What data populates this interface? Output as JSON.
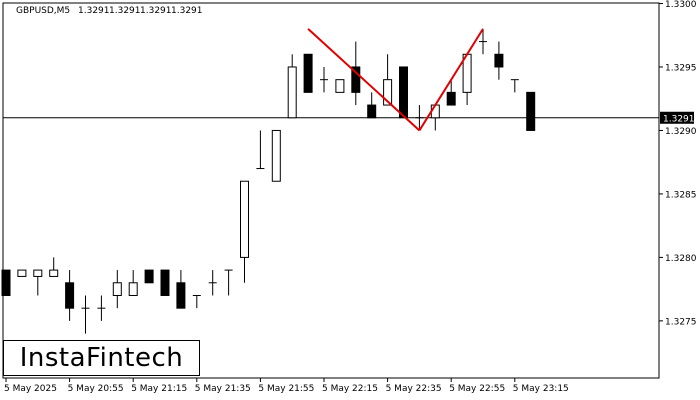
{
  "header": {
    "symbol": "GBPUSD,M5",
    "ohlc": [
      "1.3291",
      "1.3291",
      "1.3291",
      "1.3291"
    ]
  },
  "logo": {
    "text": "InstaFintech"
  },
  "chart_data": {
    "type": "candlestick",
    "symbol": "GBPUSD",
    "timeframe": "M5",
    "ylim": [
      1.32705,
      1.33
    ],
    "y_ticks": [
      "1.3275",
      "1.3280",
      "1.3285",
      "1.3290",
      "1.3295",
      "1.3300"
    ],
    "x_tick_labels": [
      "5 May 2025",
      "5 May 20:55",
      "5 May 21:15",
      "5 May 21:35",
      "5 May 21:55",
      "5 May 22:15",
      "5 May 22:35",
      "5 May 22:55",
      "5 May 23:15"
    ],
    "current_price": 1.3291,
    "current_price_label": "1.3291",
    "candles": [
      {
        "o": 1.3279,
        "h": 1.3279,
        "l": 1.3277,
        "c": 1.3277
      },
      {
        "o": 1.32785,
        "h": 1.3279,
        "l": 1.32785,
        "c": 1.3279
      },
      {
        "o": 1.32785,
        "h": 1.3279,
        "l": 1.3277,
        "c": 1.3279
      },
      {
        "o": 1.32785,
        "h": 1.328,
        "l": 1.32785,
        "c": 1.3279
      },
      {
        "o": 1.3278,
        "h": 1.3279,
        "l": 1.3275,
        "c": 1.3276
      },
      {
        "o": 1.3276,
        "h": 1.3277,
        "l": 1.3274,
        "c": 1.3276
      },
      {
        "o": 1.3276,
        "h": 1.3277,
        "l": 1.3275,
        "c": 1.3276
      },
      {
        "o": 1.3277,
        "h": 1.3279,
        "l": 1.3276,
        "c": 1.3278
      },
      {
        "o": 1.3277,
        "h": 1.3279,
        "l": 1.3277,
        "c": 1.3278
      },
      {
        "o": 1.3279,
        "h": 1.3279,
        "l": 1.3278,
        "c": 1.3278
      },
      {
        "o": 1.3279,
        "h": 1.3279,
        "l": 1.3277,
        "c": 1.3277
      },
      {
        "o": 1.3278,
        "h": 1.3279,
        "l": 1.3276,
        "c": 1.3276
      },
      {
        "o": 1.3277,
        "h": 1.3277,
        "l": 1.3276,
        "c": 1.3277
      },
      {
        "o": 1.3278,
        "h": 1.3279,
        "l": 1.3277,
        "c": 1.3278
      },
      {
        "o": 1.3279,
        "h": 1.3279,
        "l": 1.3277,
        "c": 1.3279
      },
      {
        "o": 1.328,
        "h": 1.3286,
        "l": 1.3278,
        "c": 1.3286
      },
      {
        "o": 1.3287,
        "h": 1.329,
        "l": 1.3287,
        "c": 1.3287
      },
      {
        "o": 1.3286,
        "h": 1.329,
        "l": 1.3286,
        "c": 1.329
      },
      {
        "o": 1.3291,
        "h": 1.3296,
        "l": 1.3291,
        "c": 1.3295
      },
      {
        "o": 1.3296,
        "h": 1.3296,
        "l": 1.3293,
        "c": 1.3293
      },
      {
        "o": 1.3294,
        "h": 1.3295,
        "l": 1.3293,
        "c": 1.3294
      },
      {
        "o": 1.3293,
        "h": 1.3294,
        "l": 1.3293,
        "c": 1.3294
      },
      {
        "o": 1.3295,
        "h": 1.3297,
        "l": 1.3292,
        "c": 1.3293
      },
      {
        "o": 1.3292,
        "h": 1.3293,
        "l": 1.3291,
        "c": 1.3291
      },
      {
        "o": 1.3292,
        "h": 1.3296,
        "l": 1.3292,
        "c": 1.3294
      },
      {
        "o": 1.3295,
        "h": 1.3295,
        "l": 1.3291,
        "c": 1.3291
      },
      {
        "o": 1.3291,
        "h": 1.3292,
        "l": 1.329,
        "c": 1.3291
      },
      {
        "o": 1.3291,
        "h": 1.3292,
        "l": 1.329,
        "c": 1.3292
      },
      {
        "o": 1.3293,
        "h": 1.3294,
        "l": 1.3292,
        "c": 1.3292
      },
      {
        "o": 1.3293,
        "h": 1.3296,
        "l": 1.3292,
        "c": 1.3296
      },
      {
        "o": 1.3297,
        "h": 1.3298,
        "l": 1.3296,
        "c": 1.3297
      },
      {
        "o": 1.3296,
        "h": 1.3297,
        "l": 1.3294,
        "c": 1.3295
      },
      {
        "o": 1.3294,
        "h": 1.3294,
        "l": 1.3293,
        "c": 1.3294
      },
      {
        "o": 1.3293,
        "h": 1.3293,
        "l": 1.329,
        "c": 1.329
      }
    ],
    "pattern": {
      "type": "double top",
      "color": "#e00000",
      "points": [
        {
          "candle": 19,
          "price": 1.3298
        },
        {
          "candle": 26,
          "price": 1.329
        },
        {
          "candle": 30,
          "price": 1.3298
        }
      ]
    },
    "colors": {
      "bull_body": "#ffffff",
      "bear_body": "#000000",
      "outline": "#000000",
      "pattern_line": "#e00000",
      "background": "#ffffff"
    }
  }
}
